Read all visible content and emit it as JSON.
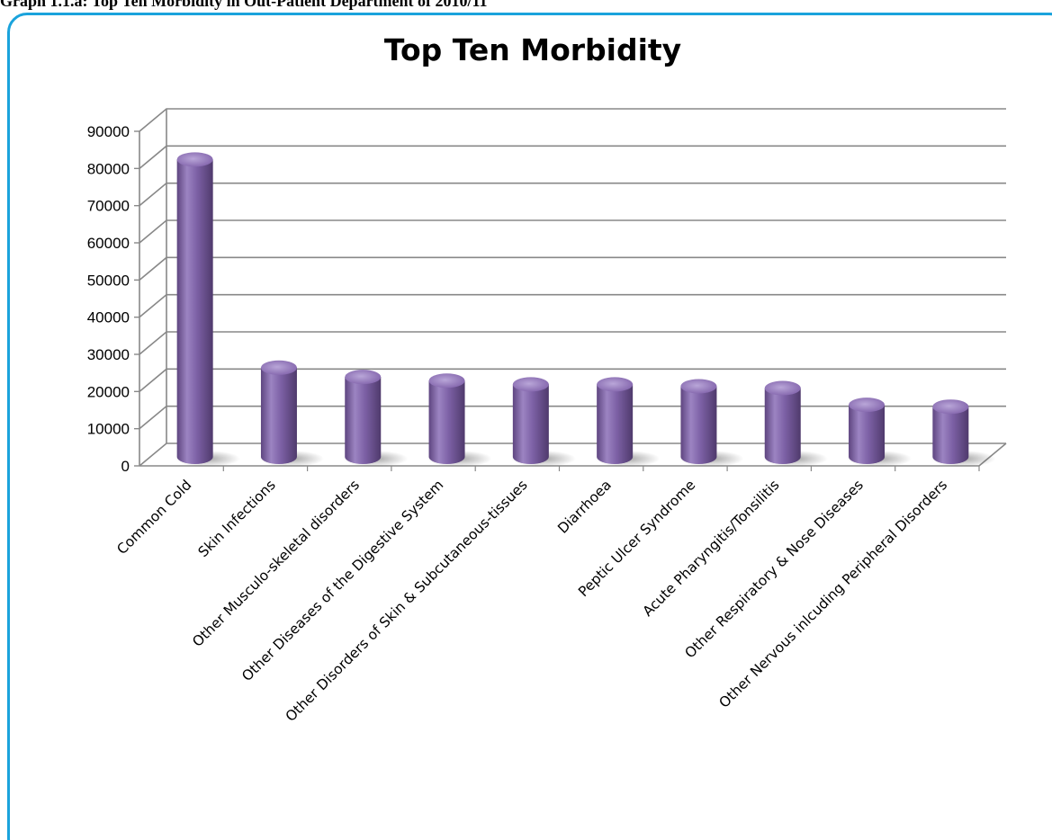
{
  "page": {
    "caption": "Graph 1.1.a: Top Ten Morbidity in Out-Patient Department of 2010/11",
    "frame_color": "#1aa3dc"
  },
  "chart_data": {
    "type": "bar",
    "style": "3d-cylinder",
    "title": "Top Ten Morbidity",
    "xlabel": "",
    "ylabel": "",
    "ylim": [
      0,
      90000
    ],
    "yticks": [
      0,
      10000,
      20000,
      30000,
      40000,
      50000,
      60000,
      70000,
      80000,
      90000
    ],
    "grid": true,
    "legend": "none",
    "bar_color": "#8064a2",
    "categories": [
      "Common Cold",
      "Skin Infections",
      "Other Musculo-skeletal disorders",
      "Other Diseases of the Digestive System",
      "Other Disorders of Skin & Subcutaneous-tissues",
      "Diarrhoea",
      "Peptic Ulcer Syndrome",
      "Acute Pharyngitis/Tonsilitis",
      "Other Respiratory & Nose Diseases",
      "Other Nervous inlcuding Peripheral Disorders"
    ],
    "values": [
      80000,
      24000,
      21500,
      20500,
      19500,
      19500,
      19000,
      18500,
      14000,
      13500
    ]
  }
}
